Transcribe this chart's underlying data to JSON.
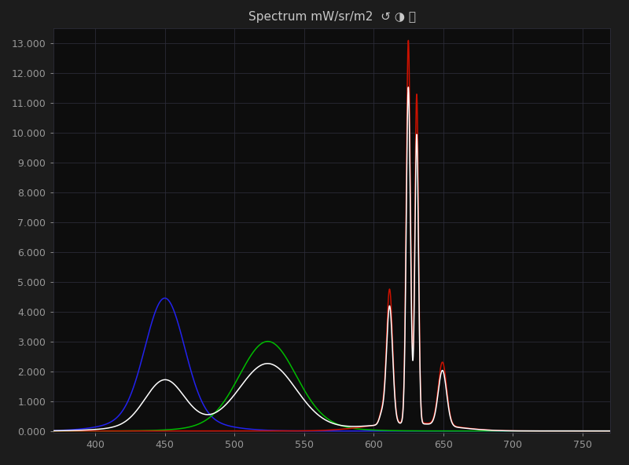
{
  "title": "Spectrum mW/sr/m2",
  "background_color": "#1c1c1c",
  "plot_bg_color": "#0d0d0d",
  "grid_color": "#2d2d3a",
  "text_color": "#c8c8c8",
  "tick_color": "#999999",
  "xlim": [
    370,
    770
  ],
  "ylim": [
    -0.05,
    13.5
  ],
  "ytick_min": 0.0,
  "ytick_max": 13.0,
  "ytick_step": 1.0,
  "xticks": [
    400,
    450,
    500,
    550,
    600,
    650,
    700,
    750
  ],
  "line_width": 1.1,
  "colors": {
    "white": "#ffffff",
    "red": "#cc1100",
    "green": "#00bb00",
    "blue": "#2222ee"
  }
}
